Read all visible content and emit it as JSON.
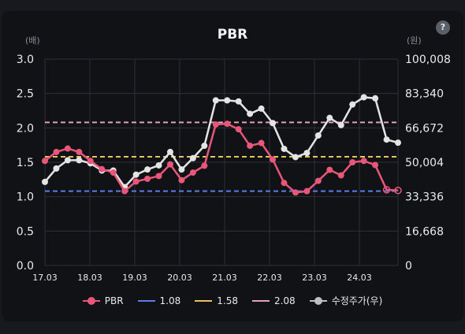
{
  "header": {
    "title": "PBR",
    "help_label": "?"
  },
  "colors": {
    "pbr": "#e8577a",
    "ref_low": "#5b7de8",
    "ref_mid": "#e8c25b",
    "ref_high": "#e8a0b4",
    "price": "#e4e4e4",
    "grid": "#2c3038"
  },
  "chart_data": {
    "type": "line",
    "title": "PBR",
    "left_unit": "(배)",
    "right_unit": "(원)",
    "x_ticks": [
      "17.03",
      "18.03",
      "19.03",
      "20.03",
      "21.03",
      "22.03",
      "23.03",
      "24.03"
    ],
    "y_left": {
      "range": [
        0,
        3.0
      ],
      "ticks": [
        "0.0",
        "0.5",
        "1.0",
        "1.5",
        "2.0",
        "2.5",
        "3.0"
      ]
    },
    "y_right": {
      "range": [
        0,
        100008
      ],
      "ticks": [
        "0",
        "16,668",
        "33,336",
        "50,004",
        "66,672",
        "83,340",
        "100,008"
      ]
    },
    "x_range": [
      0,
      31
    ],
    "series": [
      {
        "name": "PBR",
        "axis": "left",
        "x": [
          0,
          1,
          2,
          3,
          4,
          5,
          6,
          7,
          8,
          9,
          10,
          11,
          12,
          13,
          14,
          15,
          16,
          17,
          18,
          19,
          20,
          21,
          22,
          23,
          24,
          25,
          26,
          27,
          28,
          29,
          30,
          31
        ],
        "values": [
          1.52,
          1.65,
          1.7,
          1.65,
          1.52,
          1.4,
          1.35,
          1.08,
          1.22,
          1.26,
          1.3,
          1.47,
          1.24,
          1.35,
          1.45,
          2.05,
          2.06,
          1.98,
          1.74,
          1.78,
          1.54,
          1.2,
          1.06,
          1.08,
          1.23,
          1.39,
          1.31,
          1.5,
          1.52,
          1.46,
          1.1,
          1.09
        ]
      },
      {
        "name": "수정주가(우)",
        "axis": "right",
        "x": [
          0,
          1,
          2,
          3,
          4,
          5,
          6,
          7,
          8,
          9,
          10,
          11,
          12,
          13,
          14,
          15,
          16,
          17,
          18,
          19,
          20,
          21,
          22,
          23,
          24,
          25,
          26,
          27,
          28,
          29,
          30,
          31
        ],
        "values": [
          40500,
          47000,
          51000,
          51000,
          49500,
          46000,
          46000,
          38000,
          44000,
          46500,
          48500,
          55000,
          46500,
          52000,
          58000,
          80000,
          80000,
          79500,
          73500,
          76000,
          69000,
          56500,
          52500,
          54500,
          63000,
          71500,
          68000,
          78000,
          81500,
          81000,
          61000,
          59500
        ]
      }
    ],
    "reference_lines": [
      {
        "name": "1.08",
        "value": 1.08
      },
      {
        "name": "1.58",
        "value": 1.58
      },
      {
        "name": "2.08",
        "value": 2.08
      }
    ]
  }
}
